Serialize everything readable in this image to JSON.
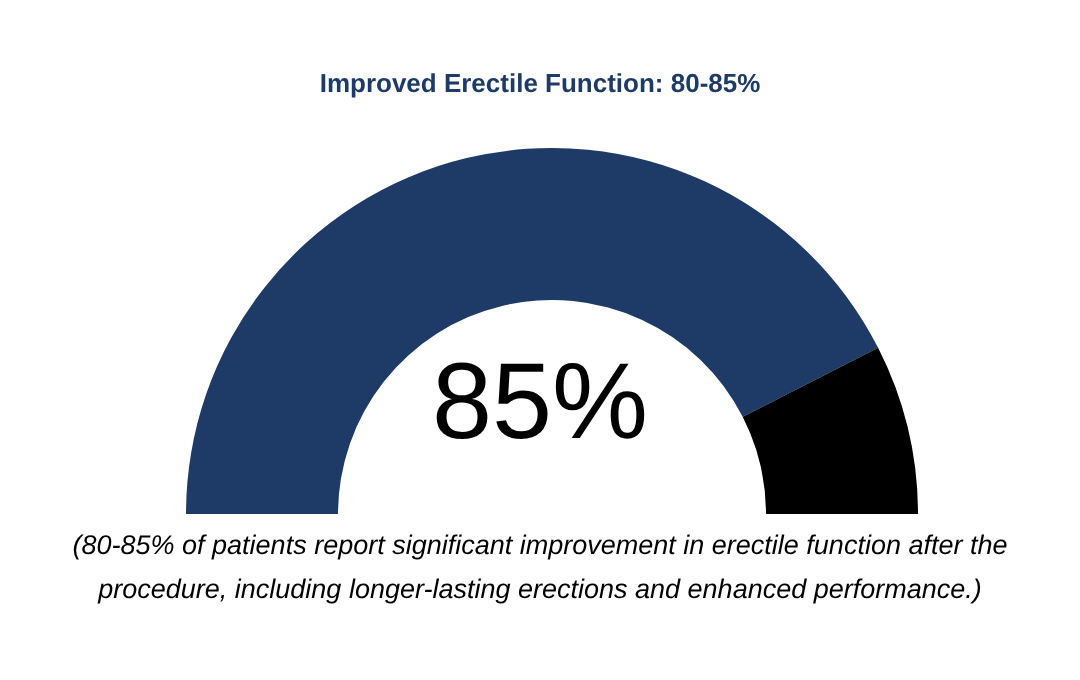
{
  "chart_data": {
    "type": "donut",
    "title": "Improved Erectile Function: 80-85%",
    "categories": [
      null,
      null
    ],
    "values": [
      85,
      15
    ],
    "colors": [
      "#1e3a66",
      "#000000"
    ],
    "value_labels": [
      "85%",
      null
    ],
    "annotations": [
      "(80-85% of patients report significant improvement in erectile function after the procedure, including longer-lasting erections and enhanced performance.)"
    ]
  }
}
